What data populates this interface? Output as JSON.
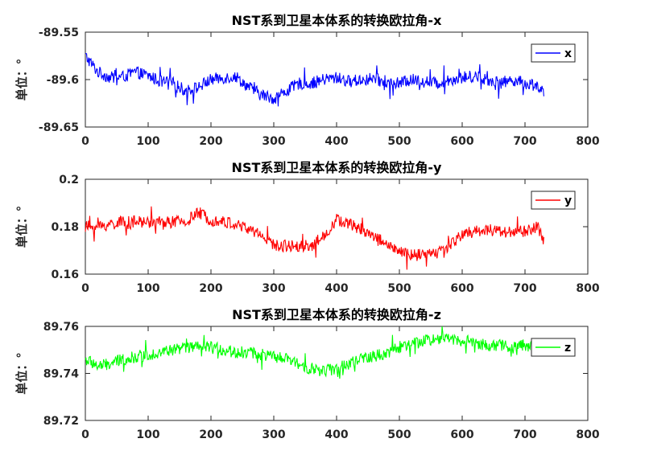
{
  "chart_data": [
    {
      "type": "line",
      "title": "NST系到卫星本体系的转换欧拉角-x",
      "ylabel": "单位：°",
      "xlim": [
        0,
        800
      ],
      "ylim": [
        -89.65,
        -89.55
      ],
      "xticks": [
        0,
        100,
        200,
        300,
        400,
        500,
        600,
        700,
        800
      ],
      "yticks": [
        -89.65,
        -89.6,
        -89.55
      ],
      "ytick_labels": [
        "-89.65",
        "-89.6",
        "-89.55"
      ],
      "grid": false,
      "legend_position": "top-right",
      "color": "#0000ff",
      "series": [
        {
          "name": "x",
          "x": [
            0,
            20,
            40,
            60,
            80,
            100,
            120,
            140,
            160,
            180,
            200,
            220,
            240,
            260,
            280,
            300,
            320,
            340,
            360,
            380,
            400,
            420,
            440,
            460,
            480,
            500,
            520,
            540,
            560,
            580,
            600,
            620,
            640,
            660,
            680,
            700,
            720,
            730
          ],
          "values": [
            -89.575,
            -89.592,
            -89.598,
            -89.597,
            -89.592,
            -89.596,
            -89.602,
            -89.604,
            -89.612,
            -89.608,
            -89.6,
            -89.598,
            -89.597,
            -89.608,
            -89.616,
            -89.62,
            -89.612,
            -89.604,
            -89.604,
            -89.6,
            -89.598,
            -89.602,
            -89.6,
            -89.599,
            -89.604,
            -89.604,
            -89.6,
            -89.602,
            -89.604,
            -89.6,
            -89.598,
            -89.596,
            -89.6,
            -89.604,
            -89.6,
            -89.604,
            -89.606,
            -89.614
          ]
        }
      ]
    },
    {
      "type": "line",
      "title": "NST系到卫星本体系的转换欧拉角-y",
      "ylabel": "单位：°",
      "xlim": [
        0,
        800
      ],
      "ylim": [
        0.16,
        0.2
      ],
      "xticks": [
        0,
        100,
        200,
        300,
        400,
        500,
        600,
        700,
        800
      ],
      "yticks": [
        0.16,
        0.18,
        0.2
      ],
      "ytick_labels": [
        "0.16",
        "0.18",
        "0.2"
      ],
      "grid": false,
      "legend_position": "top-right",
      "color": "#ff0000",
      "series": [
        {
          "name": "y",
          "x": [
            0,
            20,
            40,
            60,
            80,
            100,
            120,
            140,
            160,
            180,
            200,
            220,
            240,
            260,
            280,
            300,
            320,
            340,
            360,
            380,
            400,
            420,
            440,
            460,
            480,
            500,
            520,
            540,
            560,
            580,
            600,
            620,
            640,
            660,
            680,
            700,
            720,
            730
          ],
          "values": [
            0.18,
            0.18,
            0.181,
            0.182,
            0.182,
            0.182,
            0.182,
            0.182,
            0.182,
            0.186,
            0.183,
            0.182,
            0.181,
            0.179,
            0.177,
            0.172,
            0.172,
            0.172,
            0.172,
            0.176,
            0.183,
            0.181,
            0.179,
            0.176,
            0.173,
            0.169,
            0.168,
            0.168,
            0.169,
            0.172,
            0.177,
            0.178,
            0.179,
            0.178,
            0.178,
            0.178,
            0.18,
            0.174
          ]
        }
      ]
    },
    {
      "type": "line",
      "title": "NST系到卫星本体系的转换欧拉角-z",
      "ylabel": "单位：°",
      "xlim": [
        0,
        800
      ],
      "ylim": [
        89.72,
        89.76
      ],
      "xticks": [
        0,
        100,
        200,
        300,
        400,
        500,
        600,
        700,
        800
      ],
      "yticks": [
        89.72,
        89.74,
        89.76
      ],
      "ytick_labels": [
        "89.72",
        "89.74",
        "89.76"
      ],
      "grid": false,
      "legend_position": "top-right",
      "color": "#00ff00",
      "series": [
        {
          "name": "z",
          "x": [
            0,
            20,
            40,
            60,
            80,
            100,
            120,
            140,
            160,
            180,
            200,
            220,
            240,
            260,
            280,
            300,
            320,
            340,
            360,
            380,
            400,
            420,
            440,
            460,
            480,
            500,
            520,
            540,
            560,
            580,
            600,
            620,
            640,
            660,
            680,
            700,
            720,
            730
          ],
          "values": [
            89.746,
            89.743,
            89.744,
            89.746,
            89.747,
            89.748,
            89.749,
            89.75,
            89.751,
            89.751,
            89.751,
            89.75,
            89.749,
            89.749,
            89.748,
            89.747,
            89.746,
            89.744,
            89.742,
            89.741,
            89.742,
            89.744,
            89.746,
            89.747,
            89.749,
            89.751,
            89.752,
            89.754,
            89.755,
            89.755,
            89.754,
            89.753,
            89.752,
            89.752,
            89.751,
            89.752,
            89.751,
            89.752
          ]
        }
      ]
    }
  ]
}
